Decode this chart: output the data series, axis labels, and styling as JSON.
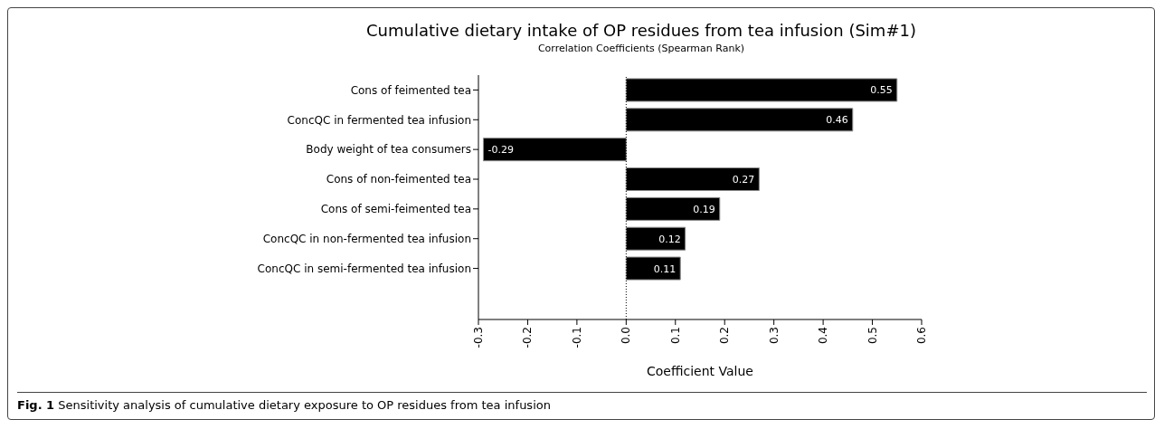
{
  "chart_data": {
    "type": "bar",
    "orientation": "horizontal",
    "title": "Cumulative dietary intake of OP residues from tea infusion (Sim#1)",
    "subtitle": "Correlation Coefficients (Spearman Rank)",
    "xlabel": "Coefficient Value",
    "categories": [
      "Cons of feimented tea",
      "ConcQC in fermented tea infusion",
      "Body weight of tea consumers",
      "Cons of non-feimented tea",
      "Cons of semi-feimented tea",
      "ConcQC in non-fermented tea infusion",
      "ConcQC in semi-fermented tea infusion"
    ],
    "values": [
      0.55,
      0.46,
      -0.29,
      0.27,
      0.19,
      0.12,
      0.11
    ],
    "color": "#000000",
    "data_labels": true,
    "xlim": [
      -0.3,
      0.6
    ],
    "xticks": [
      {
        "value": -0.3,
        "label": "-0.3"
      },
      {
        "value": -0.2,
        "label": "-0.2"
      },
      {
        "value": -0.1,
        "label": "-0.1"
      },
      {
        "value": 0,
        "label": "0.0"
      },
      {
        "value": 0.1,
        "label": "0.1"
      },
      {
        "value": 0.2,
        "label": "0.2"
      },
      {
        "value": 0.3,
        "label": "0.3"
      },
      {
        "value": 0.4,
        "label": "0.4"
      },
      {
        "value": 0.5,
        "label": "0.5"
      },
      {
        "value": 0.6,
        "label": "0.6"
      }
    ],
    "ref_lines": [
      {
        "axis": "x",
        "value": 0,
        "color": "#000000",
        "line_style": "dotted"
      }
    ],
    "grid": false,
    "legend": false,
    "annotations": [
      "Fig. 1 Sensitivity analysis of cumulative dietary exposure to OP residues from tea infusion"
    ]
  }
}
